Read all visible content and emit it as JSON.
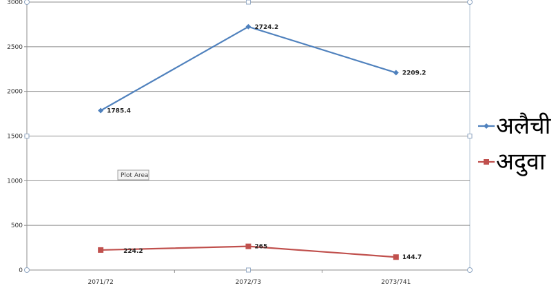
{
  "chart_data": {
    "type": "line",
    "categories": [
      "2071/72",
      "2072/73",
      "2073/741"
    ],
    "ylim": [
      0,
      3000
    ],
    "yticks": [
      0,
      500,
      1000,
      1500,
      2000,
      2500,
      3000
    ],
    "grid": true,
    "legend_placement": "right",
    "series": [
      {
        "name": "अलैची",
        "values": [
          1785.4,
          2724.2,
          2209.2
        ],
        "labels": [
          "1785.4",
          "2724.2",
          "2209.2"
        ],
        "color": "#4f81bd",
        "marker": "diamond"
      },
      {
        "name": "अदुवा",
        "values": [
          224.2,
          265,
          144.7
        ],
        "labels": [
          "224.2",
          "265",
          "144.7"
        ],
        "color": "#c0504d",
        "marker": "square"
      }
    ]
  },
  "tooltip": {
    "label": "Plot Area"
  }
}
